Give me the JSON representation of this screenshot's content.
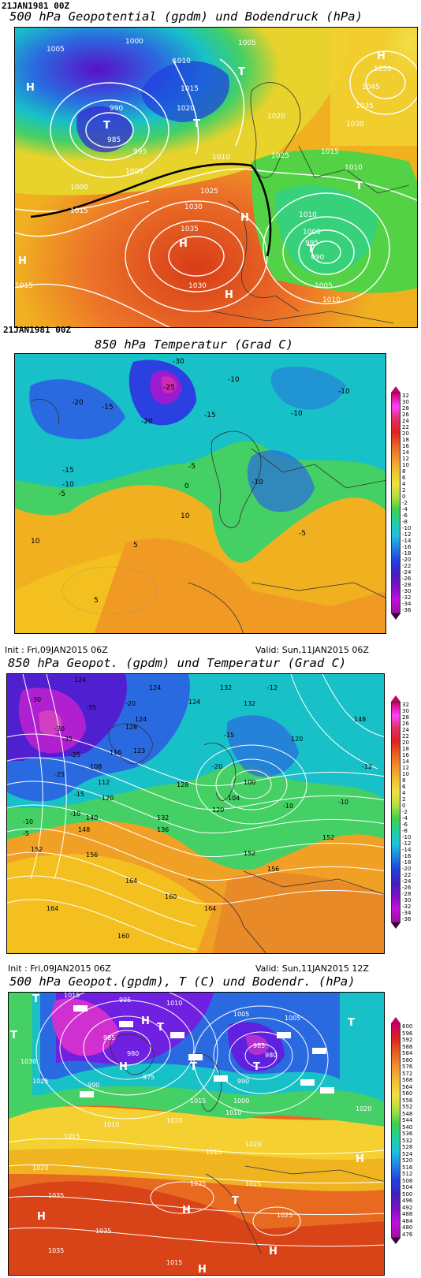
{
  "panels": [
    {
      "stamp": "21JAN1981 00Z",
      "title": "500 hPa Geopotential (gpdm) und Bodendruck (hPa)"
    },
    {
      "stamp": "21JAN1981 00Z",
      "title": "850 hPa Temperatur (Grad C)",
      "colorbar": [
        "32",
        "30",
        "28",
        "26",
        "24",
        "22",
        "20",
        "18",
        "16",
        "14",
        "12",
        "10",
        "8",
        "6",
        "4",
        "2",
        "0",
        "-2",
        "-4",
        "-6",
        "-8",
        "-10",
        "-12",
        "-14",
        "-16",
        "-18",
        "-20",
        "-22",
        "-24",
        "-26",
        "-28",
        "-30",
        "-32",
        "-34",
        "-36"
      ]
    },
    {
      "init": "Init : Fri,09JAN2015 06Z",
      "valid": "Valid: Sun,11JAN2015 06Z",
      "title": "850 hPa Geopot. (gpdm) und Temperatur (Grad C)",
      "colorbar": [
        "32",
        "30",
        "28",
        "26",
        "24",
        "22",
        "20",
        "18",
        "16",
        "14",
        "12",
        "10",
        "8",
        "6",
        "4",
        "2",
        "0",
        "-2",
        "-4",
        "-6",
        "-8",
        "-10",
        "-12",
        "-14",
        "-16",
        "-18",
        "-20",
        "-22",
        "-24",
        "-26",
        "-28",
        "-30",
        "-32",
        "-34",
        "-36"
      ]
    },
    {
      "init": "Init : Fri,09JAN2015 06Z",
      "valid": "Valid: Sun,11JAN2015 12Z",
      "title": "500 hPa Geopot.(gpdm), T (C) und Bodendr. (hPa)",
      "colorbar": [
        "600",
        "596",
        "592",
        "588",
        "584",
        "580",
        "576",
        "572",
        "568",
        "564",
        "560",
        "556",
        "552",
        "548",
        "544",
        "540",
        "536",
        "532",
        "528",
        "524",
        "520",
        "516",
        "512",
        "508",
        "504",
        "500",
        "496",
        "492",
        "488",
        "484",
        "480",
        "476"
      ]
    }
  ],
  "map_labels": {
    "p1": [
      "1005",
      "1010",
      "1015",
      "1020",
      "1025",
      "1030",
      "1035",
      "1040",
      "1045",
      "1050",
      "1000",
      "995",
      "990",
      "985",
      "H",
      "T"
    ],
    "p2": [
      "-30",
      "-25",
      "-20",
      "-15",
      "-10",
      "-5",
      "0",
      "5",
      "10"
    ],
    "p3": [
      "124",
      "128",
      "132",
      "136",
      "140",
      "148",
      "152",
      "156",
      "160",
      "164",
      "116",
      "112",
      "108",
      "104",
      "100",
      "-30",
      "-25",
      "-20",
      "-15",
      "-10",
      "-5"
    ],
    "p4": [
      "1015",
      "1020",
      "1025",
      "1030",
      "1035",
      "1010",
      "1005",
      "1000",
      "995",
      "990",
      "985",
      "980",
      "975",
      "H",
      "T"
    ]
  }
}
